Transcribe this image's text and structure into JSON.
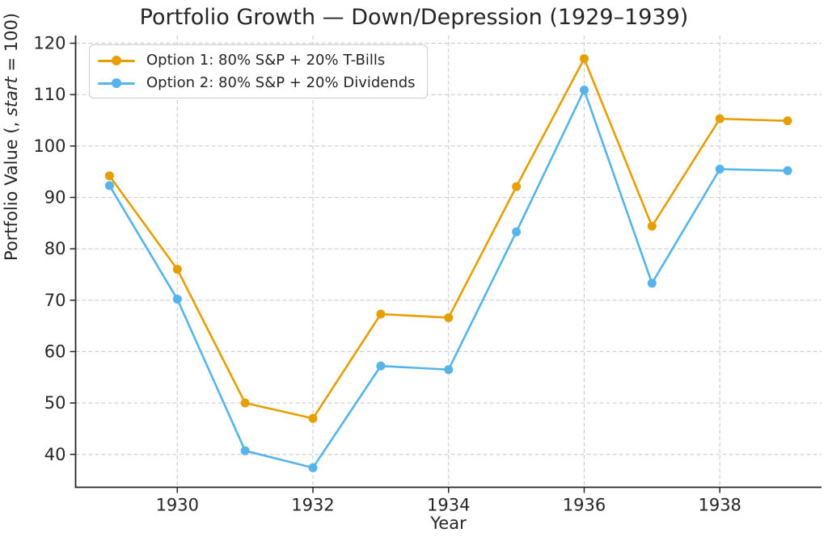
{
  "chart_data": {
    "type": "line",
    "title": "Portfolio Growth — Down/Depression (1929–1939)",
    "xlabel": "Year",
    "ylabel": "Portfolio Value (, start = 100)",
    "ylabel_parts": {
      "prefix": "Portfolio Value (, ",
      "italic": "start",
      "suffix": " = 100)"
    },
    "x": [
      1929,
      1930,
      1931,
      1932,
      1933,
      1934,
      1935,
      1936,
      1937,
      1938,
      1939
    ],
    "series": [
      {
        "name": "Option 1: 80% S&P + 20% T-Bills",
        "color": "#E69F00",
        "values": [
          94.2,
          76.0,
          50.0,
          47.0,
          67.3,
          66.6,
          92.1,
          117.0,
          84.4,
          105.3,
          104.9
        ]
      },
      {
        "name": "Option 2: 80% S&P + 20% Dividends",
        "color": "#56B4E9",
        "values": [
          92.3,
          70.2,
          40.7,
          37.4,
          57.2,
          56.5,
          83.3,
          110.9,
          73.3,
          95.5,
          95.2
        ]
      }
    ],
    "xticks": [
      1930,
      1932,
      1934,
      1936,
      1938
    ],
    "yticks": [
      40,
      50,
      60,
      70,
      80,
      90,
      100,
      110,
      120
    ],
    "xlim": [
      1928.5,
      1939.5
    ],
    "ylim": [
      33.6,
      121.5
    ],
    "grid": true,
    "legend_position": "upper-left",
    "axis_color": "#262626",
    "grid_color": "#cccccc",
    "tick_label_color": "#262626"
  }
}
